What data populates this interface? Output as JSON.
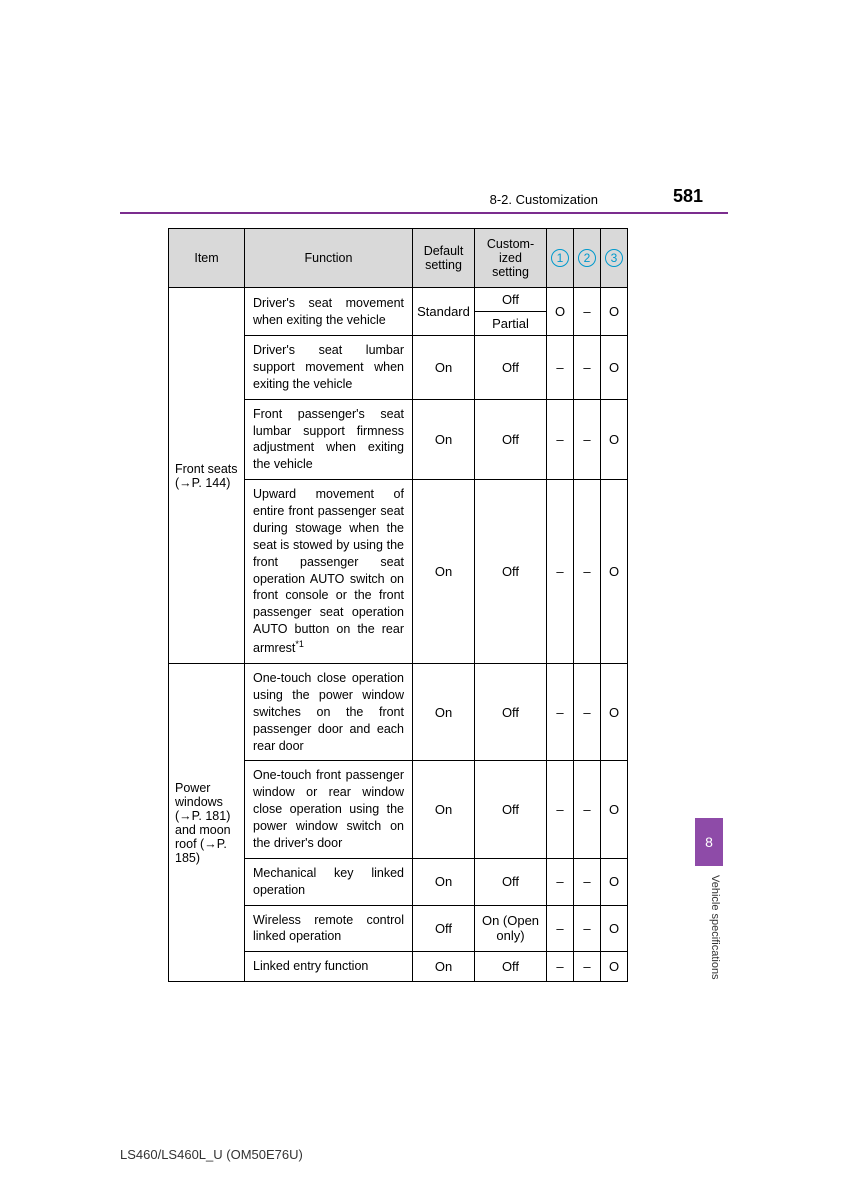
{
  "header": {
    "section": "8-2. Customization",
    "page_number": "581"
  },
  "side": {
    "chapter": "8",
    "label": "Vehicle specifications"
  },
  "footer": "LS460/LS460L_U (OM50E76U)",
  "table": {
    "headers": {
      "item": "Item",
      "function": "Function",
      "default": "Default setting",
      "custom": "Custom-ized setting",
      "c1": "1",
      "c2": "2",
      "c3": "3"
    },
    "groups": [
      {
        "item": "Front seats (→P. 144)",
        "rows": [
          {
            "func": "Driver's seat movement when exiting the vehicle",
            "def": "Standard",
            "cust": [
              "Off",
              "Partial"
            ],
            "v": [
              "O",
              "–",
              "O"
            ]
          },
          {
            "func": "Driver's seat lumbar support movement when exiting the vehicle",
            "def": "On",
            "cust": [
              "Off"
            ],
            "v": [
              "–",
              "–",
              "O"
            ]
          },
          {
            "func": "Front passenger's seat lumbar support firmness adjustment when exiting the vehicle",
            "def": "On",
            "cust": [
              "Off"
            ],
            "v": [
              "–",
              "–",
              "O"
            ]
          },
          {
            "func": "Upward movement of entire front passenger seat during stowage when the seat is stowed by using the front passenger seat operation AUTO switch on front console or the front passenger seat operation AUTO button on the rear armrest*1",
            "def": "On",
            "cust": [
              "Off"
            ],
            "v": [
              "–",
              "–",
              "O"
            ]
          }
        ]
      },
      {
        "item": "Power windows (→P. 181) and moon roof (→P. 185)",
        "rows": [
          {
            "func": "One-touch close operation using the power window switches on the front passenger door and each rear door",
            "def": "On",
            "cust": [
              "Off"
            ],
            "v": [
              "–",
              "–",
              "O"
            ]
          },
          {
            "func": "One-touch front passenger window or rear window close operation using the power window switch on the driver's door",
            "def": "On",
            "cust": [
              "Off"
            ],
            "v": [
              "–",
              "–",
              "O"
            ]
          },
          {
            "func": "Mechanical key linked operation",
            "def": "On",
            "cust": [
              "Off"
            ],
            "v": [
              "–",
              "–",
              "O"
            ]
          },
          {
            "func": "Wireless remote control linked operation",
            "def": "Off",
            "cust": [
              "On (Open only)"
            ],
            "v": [
              "–",
              "–",
              "O"
            ]
          },
          {
            "func": "Linked entry function",
            "def": "On",
            "cust": [
              "Off"
            ],
            "v": [
              "–",
              "–",
              "O"
            ]
          }
        ]
      }
    ]
  }
}
